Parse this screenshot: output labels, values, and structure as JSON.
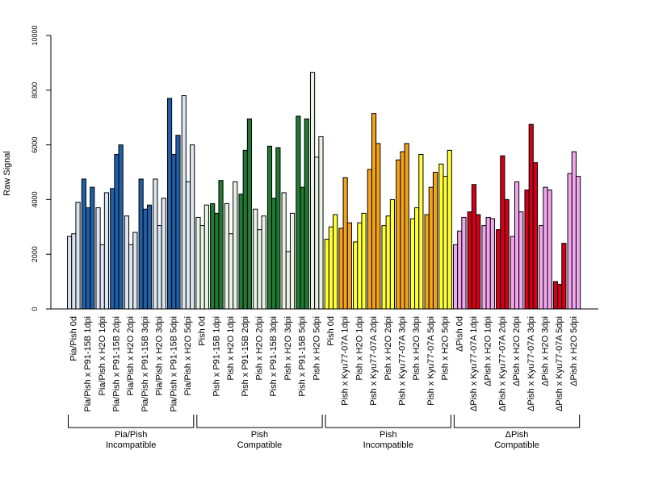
{
  "chart_data": {
    "type": "bar",
    "title": "",
    "ylabel": "Raw Signal",
    "ylim": [
      0,
      10000
    ],
    "yticks": [
      0,
      2000,
      4000,
      6000,
      8000,
      10000
    ],
    "bars_per_category": 3,
    "grid": false,
    "legend": "none",
    "categories": [
      {
        "label": "Pia/Pish 0d",
        "values": [
          2650,
          2750,
          3900
        ],
        "color": "#dbe6f2"
      },
      {
        "label": "Pia/Pish x P91-15B 1dpi",
        "values": [
          4750,
          3700,
          4450
        ],
        "color": "#1f5fa8"
      },
      {
        "label": "Pia/Pish x H2O 1dpi",
        "values": [
          3700,
          2350,
          4250
        ],
        "color": "#dbe6f2"
      },
      {
        "label": "Pia/Pish x P91-15B 2dpi",
        "values": [
          4400,
          5650,
          6000
        ],
        "color": "#1f5fa8"
      },
      {
        "label": "Pia/Pish x H2O 2dpi",
        "values": [
          3400,
          2350,
          2800
        ],
        "color": "#dbe6f2"
      },
      {
        "label": "Pia/Pish x P91-15B 3dpi",
        "values": [
          4750,
          3650,
          3800
        ],
        "color": "#1f5fa8"
      },
      {
        "label": "Pia/Pish x H2O 3dpi",
        "values": [
          4750,
          3050,
          4050
        ],
        "color": "#dbe6f2"
      },
      {
        "label": "Pia/Pish x P91-15B 5dpi",
        "values": [
          7700,
          5650,
          6350
        ],
        "color": "#1f5fa8"
      },
      {
        "label": "Pia/Pish x H2O 5dpi",
        "values": [
          7800,
          4650,
          6000
        ],
        "color": "#dbe6f2"
      },
      {
        "label": "Pish 0d",
        "values": [
          3350,
          3050,
          3800
        ],
        "color": "#e8f3e4"
      },
      {
        "label": "Pish x P91-15B 1dpi",
        "values": [
          3850,
          3500,
          4700
        ],
        "color": "#217a33"
      },
      {
        "label": "Pish x H2O 1dpi",
        "values": [
          3850,
          2750,
          4650
        ],
        "color": "#e8f3e4"
      },
      {
        "label": "Pish x P91-15B 2dpi",
        "values": [
          4200,
          5800,
          6950
        ],
        "color": "#217a33"
      },
      {
        "label": "Pish x H2O 2dpi",
        "values": [
          3650,
          2900,
          3400
        ],
        "color": "#e8f3e4"
      },
      {
        "label": "Pish x P91-15B 3dpi",
        "values": [
          5950,
          4050,
          5900
        ],
        "color": "#217a33"
      },
      {
        "label": "Pish x H2O 3dpi",
        "values": [
          4250,
          2100,
          3500
        ],
        "color": "#e8f3e4"
      },
      {
        "label": "Pish x P91-15B 5dpi",
        "values": [
          7050,
          4450,
          6950
        ],
        "color": "#217a33"
      },
      {
        "label": "Pish x H2O 5dpi",
        "values": [
          8650,
          5550,
          6300
        ],
        "color": "#e8f3e4"
      },
      {
        "label": "Pish 0d",
        "values": [
          2550,
          3000,
          3450
        ],
        "color": "#ffff33"
      },
      {
        "label": "Pish x Kyu77-07A 1dpi",
        "values": [
          2950,
          4800,
          3150
        ],
        "color": "#f5a31a"
      },
      {
        "label": "Pish x H2O 1dpi",
        "values": [
          2450,
          3150,
          3500
        ],
        "color": "#ffff33"
      },
      {
        "label": "Pish x Kyu77-07A 2dpi",
        "values": [
          5100,
          7150,
          6050
        ],
        "color": "#f5a31a"
      },
      {
        "label": "Pish x H2O 2dpi",
        "values": [
          3050,
          3400,
          4000
        ],
        "color": "#ffff33"
      },
      {
        "label": "Pish x Kyu77-07A 3dpi",
        "values": [
          5450,
          5750,
          6050
        ],
        "color": "#f5a31a"
      },
      {
        "label": "Pish x H2O 3dpi",
        "values": [
          3300,
          3700,
          5650
        ],
        "color": "#ffff33"
      },
      {
        "label": "Pish x Kyu77-07A 5dpi",
        "values": [
          3450,
          4450,
          5000
        ],
        "color": "#f5a31a"
      },
      {
        "label": "Pish x H2O 5dpi",
        "values": [
          5300,
          4850,
          5800
        ],
        "color": "#ffff33"
      },
      {
        "label": "ΔPish 0d",
        "values": [
          2350,
          2850,
          3350
        ],
        "color": "#f2a6ee"
      },
      {
        "label": "ΔPish x Kyu77-07A 1dpi",
        "values": [
          3550,
          4550,
          3450
        ],
        "color": "#d4001a"
      },
      {
        "label": "ΔPish x H2O 1dpi",
        "values": [
          3050,
          3350,
          3300
        ],
        "color": "#f2a6ee"
      },
      {
        "label": "ΔPish x Kyu77-07A 2dpi",
        "values": [
          2900,
          5600,
          4000
        ],
        "color": "#d4001a"
      },
      {
        "label": "ΔPish x H2O 2dpi",
        "values": [
          2650,
          4650,
          3550
        ],
        "color": "#f2a6ee"
      },
      {
        "label": "ΔPish x Kyu77-07A 3dpi",
        "values": [
          4350,
          6750,
          5350
        ],
        "color": "#d4001a"
      },
      {
        "label": "ΔPish x H2O 3dpi",
        "values": [
          3050,
          4450,
          4350
        ],
        "color": "#f2a6ee"
      },
      {
        "label": "ΔPish x Kyu77-07A 5dpi",
        "values": [
          1000,
          900,
          2400
        ],
        "color": "#d4001a"
      },
      {
        "label": "ΔPish x H2O 5dpi",
        "values": [
          4950,
          5750,
          4850
        ],
        "color": "#f2a6ee"
      }
    ],
    "groups": [
      {
        "line1": "Pia/Pish",
        "line2": "Incompatible",
        "start": 0,
        "end": 8
      },
      {
        "line1": "Pish",
        "line2": "Compatible",
        "start": 9,
        "end": 17
      },
      {
        "line1": "Pish",
        "line2": "Incompatible",
        "start": 18,
        "end": 26
      },
      {
        "line1": "ΔPish",
        "line2": "Compatible",
        "start": 27,
        "end": 35
      }
    ]
  }
}
